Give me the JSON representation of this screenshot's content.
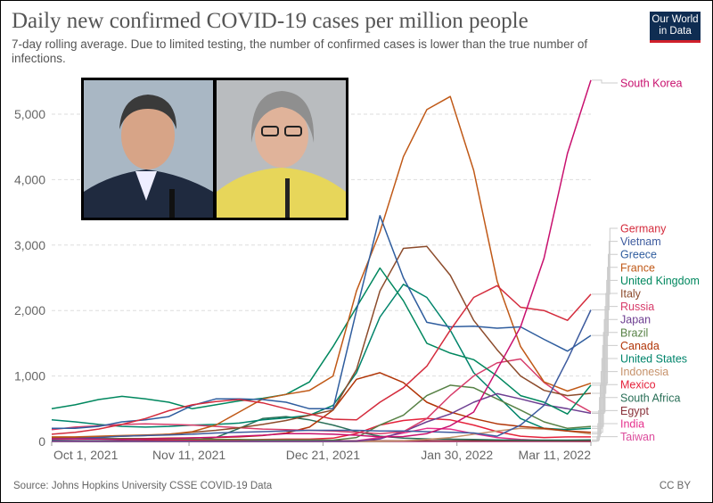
{
  "header": {
    "title": "Daily new confirmed COVID-19 cases per million people",
    "subtitle": "7-day rolling average. Due to limited testing, the number of confirmed cases is lower than the true number of infections.",
    "logo": "Our World in Data"
  },
  "footer": {
    "source": "Source: Johns Hopkins University CSSE COVID-19 Data",
    "license": "CC BY"
  },
  "photo": {
    "description_icon": "photo-two-officials"
  },
  "chart_data": {
    "type": "line",
    "title": "Daily new confirmed COVID-19 cases per million people",
    "ylim": [
      0,
      5600
    ],
    "yticks": [
      0,
      1000,
      2000,
      3000,
      4000,
      5000
    ],
    "ytick_labels": [
      "0",
      "1,000",
      "2,000",
      "3,000",
      "4,000",
      "5,000"
    ],
    "xlim": [
      "2021-10-01",
      "2022-03-11"
    ],
    "xticks": [
      "2021-10-01",
      "2021-11-11",
      "2021-12-21",
      "2022-01-30",
      "2022-03-11"
    ],
    "xtick_labels": [
      "Oct 1, 2021",
      "Nov 11, 2021",
      "Dec 21, 2021",
      "Jan 30, 2022",
      "Mar 11, 2022"
    ],
    "grid": "horizontal dashed",
    "legend": "right, line-end labels",
    "x": [
      "2021-10-01",
      "2021-10-08",
      "2021-10-15",
      "2021-10-22",
      "2021-10-29",
      "2021-11-05",
      "2021-11-12",
      "2021-11-19",
      "2021-11-26",
      "2021-12-03",
      "2021-12-10",
      "2021-12-17",
      "2021-12-24",
      "2021-12-31",
      "2022-01-07",
      "2022-01-14",
      "2022-01-21",
      "2022-01-28",
      "2022-02-04",
      "2022-02-11",
      "2022-02-18",
      "2022-02-25",
      "2022-03-04",
      "2022-03-11"
    ],
    "series": [
      {
        "name": "South Korea",
        "color": "#c8106e",
        "values": [
          40,
          40,
          35,
          30,
          35,
          45,
          55,
          65,
          80,
          95,
          120,
          120,
          110,
          95,
          70,
          75,
          120,
          240,
          450,
          1100,
          1750,
          2800,
          4400,
          5520
        ]
      },
      {
        "name": "Germany",
        "color": "#d42b3c",
        "values": [
          110,
          140,
          190,
          260,
          350,
          470,
          560,
          610,
          640,
          590,
          500,
          420,
          340,
          330,
          600,
          820,
          1150,
          1700,
          2200,
          2380,
          2050,
          2000,
          1850,
          2250
        ]
      },
      {
        "name": "Vietnam",
        "color": "#3d5b9e",
        "values": [
          40,
          45,
          60,
          80,
          90,
          100,
          110,
          130,
          140,
          150,
          160,
          170,
          170,
          170,
          160,
          160,
          150,
          140,
          130,
          80,
          250,
          550,
          1250,
          2010
        ]
      },
      {
        "name": "Greece",
        "color": "#2f5d9e",
        "values": [
          200,
          200,
          230,
          300,
          330,
          380,
          550,
          650,
          650,
          640,
          600,
          500,
          500,
          2000,
          3450,
          2500,
          1820,
          1750,
          1760,
          1730,
          1750,
          1560,
          1380,
          1620
        ]
      },
      {
        "name": "France",
        "color": "#c05917",
        "values": [
          70,
          70,
          80,
          90,
          100,
          110,
          150,
          250,
          450,
          650,
          720,
          780,
          1000,
          2300,
          3200,
          4350,
          5070,
          5270,
          4140,
          2450,
          1450,
          910,
          770,
          890
        ]
      },
      {
        "name": "United Kingdom",
        "color": "#00875e",
        "values": [
          500,
          560,
          640,
          690,
          650,
          600,
          500,
          560,
          620,
          660,
          720,
          910,
          1450,
          2050,
          2650,
          2150,
          1500,
          1350,
          1250,
          1000,
          700,
          600,
          420,
          860
        ]
      },
      {
        "name": "Italy",
        "color": "#8c4b2b",
        "values": [
          60,
          60,
          70,
          80,
          90,
          110,
          140,
          170,
          210,
          260,
          320,
          400,
          480,
          1100,
          2300,
          2950,
          2980,
          2540,
          1850,
          1400,
          1000,
          780,
          700,
          736
        ]
      },
      {
        "name": "Russia",
        "color": "#d73c6a",
        "values": [
          180,
          220,
          240,
          260,
          270,
          260,
          250,
          230,
          210,
          190,
          180,
          170,
          160,
          140,
          120,
          150,
          350,
          700,
          1000,
          1200,
          1260,
          900,
          650,
          450
        ]
      },
      {
        "name": "Japan",
        "color": "#6d3e91",
        "values": [
          5,
          3,
          2,
          1,
          1,
          1,
          1,
          1,
          1,
          1,
          1,
          2,
          3,
          5,
          40,
          150,
          300,
          420,
          600,
          730,
          650,
          560,
          500,
          430
        ]
      },
      {
        "name": "Brazil",
        "color": "#578145",
        "values": [
          60,
          55,
          50,
          40,
          40,
          35,
          35,
          30,
          30,
          25,
          25,
          25,
          20,
          60,
          250,
          400,
          700,
          860,
          820,
          650,
          480,
          300,
          200,
          230
        ]
      },
      {
        "name": "Canada",
        "color": "#b13507",
        "values": [
          50,
          50,
          45,
          45,
          45,
          50,
          55,
          60,
          70,
          90,
          130,
          220,
          480,
          950,
          1050,
          900,
          600,
          450,
          350,
          270,
          230,
          200,
          160,
          140
        ]
      },
      {
        "name": "United States",
        "color": "#00846b",
        "values": [
          330,
          300,
          260,
          230,
          220,
          230,
          250,
          260,
          280,
          330,
          360,
          400,
          550,
          1050,
          1900,
          2400,
          2200,
          1700,
          1050,
          700,
          350,
          200,
          180,
          200
        ]
      },
      {
        "name": "Indonesia",
        "color": "#c6926b",
        "values": [
          3,
          2,
          2,
          2,
          1,
          1,
          1,
          1,
          1,
          1,
          1,
          1,
          1,
          2,
          3,
          10,
          30,
          60,
          110,
          160,
          200,
          190,
          160,
          115
        ]
      },
      {
        "name": "Mexico",
        "color": "#e5223b",
        "values": [
          60,
          50,
          40,
          35,
          30,
          25,
          25,
          25,
          25,
          30,
          35,
          35,
          50,
          120,
          250,
          320,
          350,
          330,
          250,
          150,
          80,
          60,
          70,
          70
        ]
      },
      {
        "name": "South Africa",
        "color": "#286e56",
        "values": [
          15,
          10,
          8,
          5,
          4,
          5,
          15,
          60,
          200,
          350,
          380,
          330,
          250,
          150,
          80,
          50,
          40,
          35,
          30,
          25,
          20,
          20,
          20,
          25
        ]
      },
      {
        "name": "Egypt",
        "color": "#883039",
        "values": [
          8,
          9,
          9,
          9,
          9,
          9,
          9,
          9,
          9,
          9,
          9,
          9,
          9,
          10,
          11,
          12,
          12,
          12,
          11,
          11,
          10,
          9,
          8,
          7
        ]
      },
      {
        "name": "India",
        "color": "#e6308c",
        "values": [
          15,
          13,
          11,
          10,
          9,
          8,
          7,
          7,
          6,
          6,
          5,
          5,
          5,
          10,
          60,
          130,
          200,
          190,
          120,
          60,
          30,
          15,
          8,
          6
        ]
      },
      {
        "name": "Taiwan",
        "color": "#dc4c9c",
        "values": [
          1,
          1,
          1,
          1,
          1,
          1,
          1,
          1,
          1,
          1,
          1,
          1,
          1,
          1,
          1,
          2,
          2,
          2,
          2,
          2,
          2,
          2,
          2,
          2
        ]
      }
    ]
  }
}
